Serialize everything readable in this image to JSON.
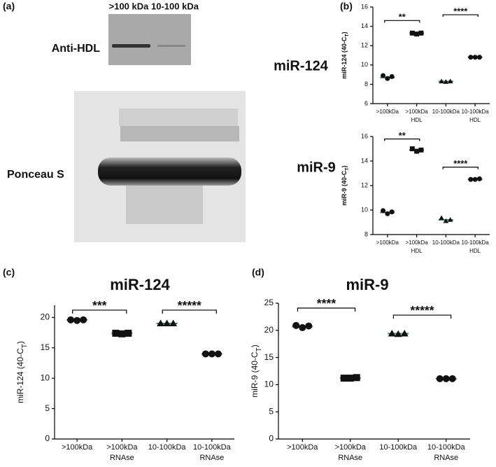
{
  "panel_labels": [
    "(a)",
    "(b)",
    "(c)",
    "(d)"
  ],
  "blot": {
    "lane_labels": [
      ">100 kDa",
      "10-100 kDa"
    ],
    "row_labels": [
      "Anti-HDL",
      "Ponceau S"
    ]
  },
  "chart_data": [
    {
      "type": "dot",
      "title": "miR-124",
      "ylabel": [
        "miR-124 (40-C",
        "T",
        ")"
      ],
      "categories": [
        [
          ">100kDa"
        ],
        [
          ">100kDa",
          "HDL"
        ],
        [
          "10-100kDa"
        ],
        [
          "10-100kDa",
          "HDL"
        ]
      ],
      "points": [
        [
          8.9,
          8.6,
          8.8
        ],
        [
          13.3,
          13.2,
          13.3
        ],
        [
          8.3,
          8.25,
          8.3
        ],
        [
          10.8,
          10.8,
          10.8
        ]
      ],
      "means": [
        8.7,
        13.3,
        8.3,
        10.8
      ],
      "markers": [
        "circle",
        "square",
        "triangle",
        "circle"
      ],
      "color": "#111111",
      "mean_color": "#2e8b7a",
      "ylim": [
        6,
        16
      ],
      "yticks": [
        6,
        8,
        10,
        12,
        14,
        16
      ],
      "brackets": [
        {
          "from": 0,
          "to": 1,
          "y": 14.6,
          "label": "**"
        },
        {
          "from": 2,
          "to": 3,
          "y": 15.2,
          "label": "****"
        }
      ]
    },
    {
      "type": "dot",
      "title": "miR-9",
      "ylabel": [
        "miR-9 (40-C",
        "T",
        ")"
      ],
      "categories": [
        [
          ">100kDa"
        ],
        [
          ">100kDa",
          "HDL"
        ],
        [
          "10-100kDa"
        ],
        [
          "10-100kDa",
          "HDL"
        ]
      ],
      "points": [
        [
          9.95,
          9.7,
          9.85
        ],
        [
          15.0,
          14.8,
          14.9
        ],
        [
          9.35,
          9.1,
          9.2
        ],
        [
          12.5,
          12.5,
          12.55
        ]
      ],
      "means": [
        9.8,
        14.9,
        9.2,
        12.5
      ],
      "markers": [
        "circle",
        "square",
        "triangle",
        "circle"
      ],
      "color": "#111111",
      "mean_color": "#2e8b7a",
      "ylim": [
        8,
        16
      ],
      "yticks": [
        8,
        10,
        12,
        14,
        16
      ],
      "brackets": [
        {
          "from": 0,
          "to": 1,
          "y": 15.8,
          "label": "**"
        },
        {
          "from": 2,
          "to": 3,
          "y": 13.5,
          "label": "****"
        }
      ]
    },
    {
      "type": "dot",
      "title": "miR-124",
      "ylabel": [
        "miR-124 (40-C",
        "T",
        ")"
      ],
      "categories": [
        [
          ">100kDa"
        ],
        [
          ">100kDa",
          "RNAse"
        ],
        [
          "10-100kDa"
        ],
        [
          "10-100kDa",
          "RNAse"
        ]
      ],
      "points": [
        [
          19.6,
          19.5,
          19.6
        ],
        [
          17.4,
          17.3,
          17.4
        ],
        [
          19.0,
          19.0,
          19.0
        ],
        [
          14.0,
          14.0,
          14.0
        ]
      ],
      "means": [
        19.6,
        17.4,
        19.0,
        14.0
      ],
      "markers": [
        "circle",
        "square",
        "triangle",
        "circle"
      ],
      "color": "#111111",
      "mean_color": "#2e8b7a",
      "ylim": [
        0,
        22
      ],
      "yticks": [
        0,
        5,
        10,
        15,
        20
      ],
      "brackets": [
        {
          "from": 0,
          "to": 1,
          "y": 21.2,
          "label": "***"
        },
        {
          "from": 2,
          "to": 3,
          "y": 21.2,
          "label": "*****"
        }
      ]
    },
    {
      "type": "dot",
      "title": "miR-9",
      "ylabel": [
        "miR-9 (40-C",
        "T",
        ")"
      ],
      "categories": [
        [
          ">100kDa"
        ],
        [
          ">100kDa",
          "RNAse"
        ],
        [
          "10-100kDa"
        ],
        [
          "10-100kDa",
          "RNAse"
        ]
      ],
      "points": [
        [
          20.9,
          20.5,
          20.8
        ],
        [
          11.2,
          11.2,
          11.3
        ],
        [
          19.4,
          19.3,
          19.4
        ],
        [
          11.1,
          11.1,
          11.1
        ]
      ],
      "means": [
        20.7,
        11.2,
        19.4,
        11.1
      ],
      "markers": [
        "circle",
        "square",
        "triangle",
        "circle"
      ],
      "color": "#111111",
      "mean_color": "#2e8b7a",
      "ylim": [
        0,
        25
      ],
      "yticks": [
        0,
        5,
        10,
        15,
        20,
        25
      ],
      "brackets": [
        {
          "from": 0,
          "to": 1,
          "y": 24.1,
          "label": "****"
        },
        {
          "from": 2,
          "to": 3,
          "y": 22.8,
          "label": "*****"
        }
      ]
    }
  ]
}
